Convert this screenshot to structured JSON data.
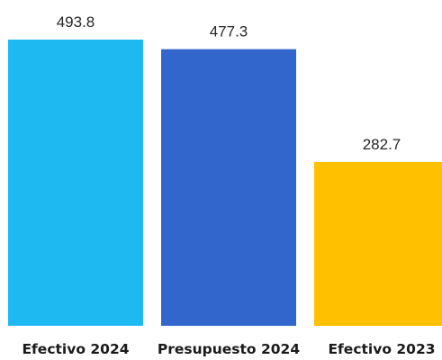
{
  "chart_data": {
    "type": "bar",
    "categories": [
      "Efectivo 2024",
      "Presupuesto 2024",
      "Efectivo 2023"
    ],
    "values": [
      493.8,
      477.3,
      282.7
    ],
    "data_labels": [
      "493.8",
      "477.3",
      "282.7"
    ],
    "colors": [
      "#1FB9F2",
      "#3366CC",
      "#FFC000"
    ],
    "title": "",
    "xlabel": "",
    "ylabel": "",
    "ylim": [
      0,
      493.8
    ],
    "grid": false,
    "legend": "none"
  }
}
